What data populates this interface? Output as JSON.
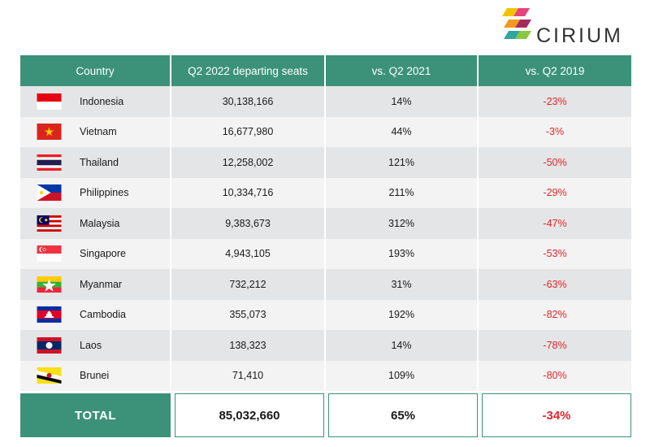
{
  "brand": {
    "name": "CIRIUM"
  },
  "table": {
    "headers": [
      "Country",
      "Q2 2022 departing seats",
      "vs. Q2 2021",
      "vs. Q2 2019"
    ],
    "rows": [
      {
        "country": "Indonesia",
        "flag": "indonesia-flag-icon",
        "seats": "30,138,166",
        "vs2021": "14%",
        "vs2019": "-23%"
      },
      {
        "country": "Vietnam",
        "flag": "vietnam-flag-icon",
        "seats": "16,677,980",
        "vs2021": "44%",
        "vs2019": "-3%"
      },
      {
        "country": "Thailand",
        "flag": "thailand-flag-icon",
        "seats": "12,258,002",
        "vs2021": "121%",
        "vs2019": "-50%"
      },
      {
        "country": "Philippines",
        "flag": "philippines-flag-icon",
        "seats": "10,334,716",
        "vs2021": "211%",
        "vs2019": "-29%"
      },
      {
        "country": "Malaysia",
        "flag": "malaysia-flag-icon",
        "seats": "9,383,673",
        "vs2021": "312%",
        "vs2019": "-47%"
      },
      {
        "country": "Singapore",
        "flag": "singapore-flag-icon",
        "seats": "4,943,105",
        "vs2021": "193%",
        "vs2019": "-53%"
      },
      {
        "country": "Myanmar",
        "flag": "myanmar-flag-icon",
        "seats": "732,212",
        "vs2021": "31%",
        "vs2019": "-63%"
      },
      {
        "country": "Cambodia",
        "flag": "cambodia-flag-icon",
        "seats": "355,073",
        "vs2021": "192%",
        "vs2019": "-82%"
      },
      {
        "country": "Laos",
        "flag": "laos-flag-icon",
        "seats": "138,323",
        "vs2021": "14%",
        "vs2019": "-78%"
      },
      {
        "country": "Brunei",
        "flag": "brunei-flag-icon",
        "seats": "71,410",
        "vs2021": "109%",
        "vs2019": "-80%"
      }
    ],
    "total": {
      "label": "TOTAL",
      "seats": "85,032,660",
      "vs2021": "65%",
      "vs2019": "-34%"
    }
  },
  "colors": {
    "header_green": "#3c9279",
    "negative_red": "#e3262a",
    "row_dark": "#e4e5e6",
    "row_light": "#f3f3f3"
  }
}
